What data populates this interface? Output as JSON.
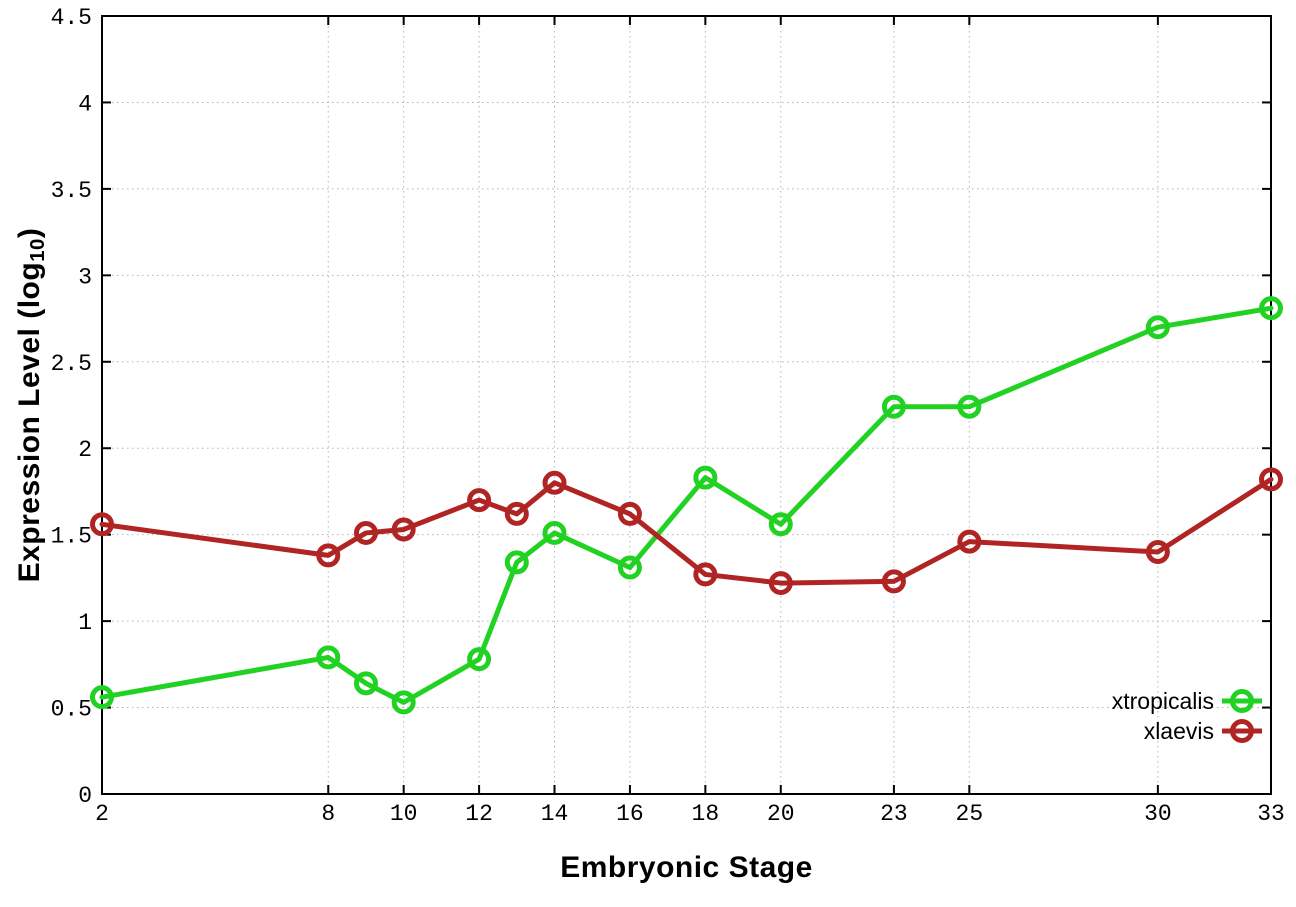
{
  "chart_data": {
    "type": "line",
    "xlabel": "Embryonic Stage",
    "ylabel": "Expression Level (log10)",
    "ylabel_parts": {
      "prefix": "Expression Level (log",
      "subscript": "10",
      "suffix": ")"
    },
    "x": [
      2,
      8,
      9,
      10,
      12,
      13,
      14,
      16,
      18,
      20,
      23,
      25,
      30,
      33
    ],
    "series": [
      {
        "name": "xtropicalis",
        "color": "#22d222",
        "values": [
          0.56,
          0.79,
          0.64,
          0.53,
          0.78,
          1.34,
          1.51,
          1.31,
          1.83,
          1.56,
          2.24,
          2.24,
          2.7,
          2.81
        ]
      },
      {
        "name": "xlaevis",
        "color": "#b02424",
        "values": [
          1.56,
          1.38,
          1.51,
          1.53,
          1.7,
          1.62,
          1.8,
          1.62,
          1.27,
          1.22,
          1.23,
          1.46,
          1.4,
          1.82
        ]
      }
    ],
    "xlim": [
      2,
      33
    ],
    "ylim": [
      0,
      4.5
    ],
    "x_ticks": [
      2,
      8,
      10,
      12,
      14,
      16,
      18,
      20,
      23,
      25,
      30,
      33
    ],
    "x_tick_labels": [
      "2",
      "8",
      "10",
      "12",
      "14",
      "16",
      "18",
      "20",
      "23",
      "25",
      "30",
      "33"
    ],
    "y_ticks": [
      0,
      0.5,
      1,
      1.5,
      2,
      2.5,
      3,
      3.5,
      4,
      4.5
    ],
    "y_tick_labels": [
      "0",
      "0.5",
      "1",
      "1.5",
      "2",
      "2.5",
      "3",
      "3.5",
      "4",
      "4.5"
    ],
    "grid": true,
    "legend": {
      "position": "bottom-right",
      "entries": [
        "xtropicalis",
        "xlaevis"
      ]
    },
    "axis_color": "#000000",
    "grid_color": "#b5b5b5",
    "background_color": "#ffffff"
  }
}
